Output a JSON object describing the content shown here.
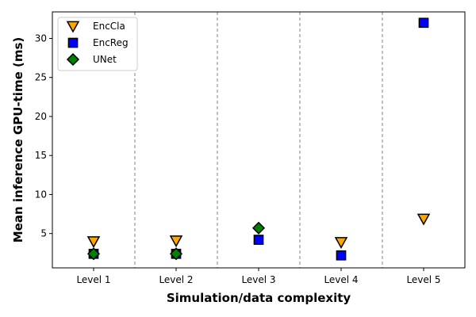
{
  "chart_data": {
    "type": "scatter",
    "title": "",
    "xlabel": "Simulation/data complexity",
    "ylabel": "Mean inference GPU-time (ms)",
    "categories": [
      "Level 1",
      "Level 2",
      "Level 3",
      "Level 4",
      "Level 5"
    ],
    "ylim": [
      0.6,
      33.4
    ],
    "yticks": [
      5,
      10,
      15,
      20,
      25,
      30
    ],
    "grid": false,
    "category_separators": "dashed vertical lines between levels",
    "legend_position": "top-left",
    "series": [
      {
        "name": "EncCla",
        "marker": "triangle-down",
        "color": "#ffa500",
        "values": [
          4.0,
          4.1,
          null,
          3.9,
          6.9
        ]
      },
      {
        "name": "EncReg",
        "marker": "square",
        "color": "#0000ff",
        "values": [
          2.4,
          2.4,
          4.2,
          2.2,
          32.0
        ]
      },
      {
        "name": "UNet",
        "marker": "diamond",
        "color": "#008000",
        "values": [
          2.4,
          2.4,
          5.7,
          null,
          null
        ]
      }
    ]
  }
}
